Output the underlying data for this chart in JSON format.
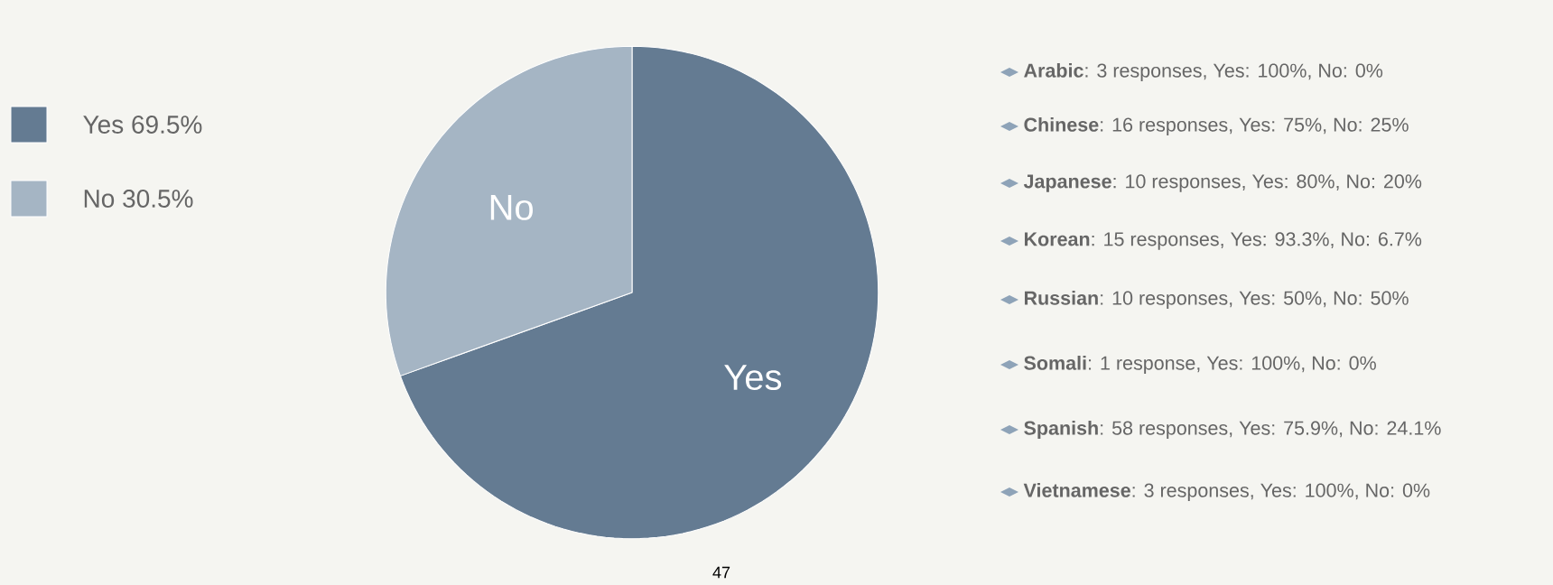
{
  "chart_data": {
    "type": "pie",
    "categories": [
      "Yes",
      "No"
    ],
    "values": [
      69.5,
      30.5
    ],
    "colors": [
      "#647b92",
      "#a5b5c4"
    ],
    "value_labels": [
      "69.5%",
      "30.5%"
    ],
    "legend": "left",
    "annotations": [
      "**Arabic**: 3 responses, Yes: 100%, No: 0%",
      "**Chinese**: 16 responses, Yes: 75%, No: 25%",
      "**Japanese**: 10 responses, Yes: 80%, No: 20%",
      "**Korean**: 15 responses, Yes: 93.3%, No: 6.7%",
      "**Russian**: 10 responses, Yes: 50%, No: 50%",
      "**Somali**: 1 response, Yes: 100%, No: 0%",
      "**Spanish**: 58 responses, Yes: 75.9%, No: 24.1%",
      "**Vietnamese**: 3 responses, Yes: 100%, No: 0%",
      "47"
    ]
  }
}
